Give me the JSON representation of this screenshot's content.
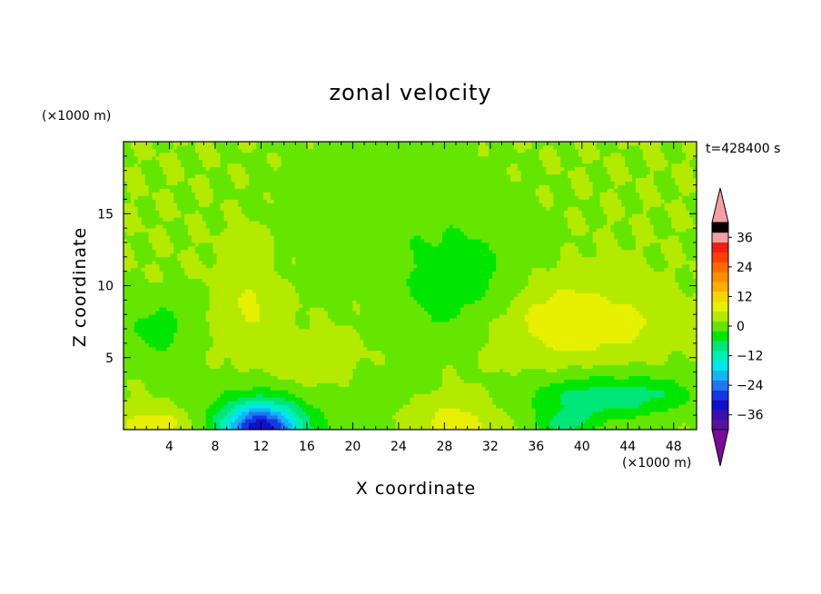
{
  "chart_data": {
    "type": "heatmap",
    "title": "zonal velocity",
    "xlabel": "X coordinate",
    "ylabel": "Z coordinate",
    "x_unit": "(×1000 m)",
    "y_unit": "(×1000 m)",
    "time_label": "t=428400 s",
    "xlim": [
      0,
      50
    ],
    "ylim": [
      0,
      20
    ],
    "x_ticks": [
      4,
      8,
      12,
      16,
      20,
      24,
      28,
      32,
      36,
      40,
      44,
      48
    ],
    "y_ticks": [
      5,
      10,
      15
    ],
    "colorbar": {
      "min": -42,
      "max": 42,
      "step": 4,
      "tick_values": [
        36,
        24,
        12,
        0,
        -12,
        -24,
        -36
      ],
      "tick_labels": [
        "36",
        "24",
        "12",
        "0",
        "−12",
        "−24",
        "−36"
      ],
      "extend": "both"
    },
    "approx_field_regions": [
      {
        "description": "background",
        "value": 2
      },
      {
        "x": 10.5,
        "z": 8.5,
        "value": 6
      },
      {
        "x": 39,
        "z": 7.5,
        "value": 10
      },
      {
        "x": 12,
        "z": 0.3,
        "value": -28
      },
      {
        "x": 29,
        "z": 0.5,
        "value": 8
      },
      {
        "x": 3,
        "z": 0.4,
        "value": 8
      },
      {
        "x": 41,
        "z": 2.2,
        "value": -10
      },
      {
        "x": 30,
        "z": 11,
        "value": -4
      },
      {
        "x": 3,
        "z": 7,
        "value": -4
      }
    ]
  },
  "colors": {
    "palette": [
      "#7a0a9a",
      "#5a10a0",
      "#3a10b0",
      "#1010c8",
      "#1438e6",
      "#1e78f0",
      "#14b4f5",
      "#00e6ea",
      "#00f0b4",
      "#00e678",
      "#00e600",
      "#64e600",
      "#b4ea00",
      "#e6f000",
      "#f6d600",
      "#ffae00",
      "#ff8c00",
      "#ff6a00",
      "#ff4000",
      "#f01e14",
      "#f5a0a0"
    ]
  }
}
